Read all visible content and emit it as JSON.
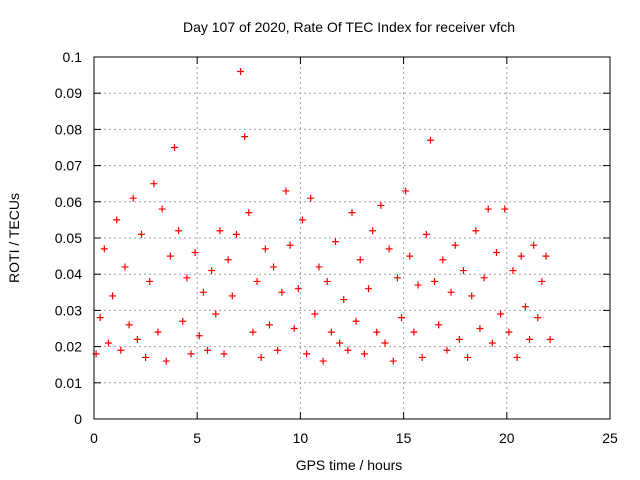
{
  "chart_data": {
    "type": "scatter",
    "title": "Day 107 of 2020, Rate Of TEC Index for receiver vfch",
    "xlabel": "GPS time / hours",
    "ylabel": "ROTI / TECUs",
    "xlim": [
      0,
      25
    ],
    "ylim": [
      0,
      0.1
    ],
    "xticks": [
      "0",
      "5",
      "10",
      "15",
      "20",
      "25"
    ],
    "yticks": [
      "0",
      "0.01",
      "0.02",
      "0.03",
      "0.04",
      "0.05",
      "0.06",
      "0.07",
      "0.08",
      "0.09",
      "0.1"
    ],
    "grid": true,
    "marker": "+",
    "color": "#ff0000",
    "series": [
      {
        "x": [
          0.1,
          0.3,
          0.5,
          0.7,
          0.9,
          1.1,
          1.3,
          1.5,
          1.7,
          1.9,
          2.1,
          2.3,
          2.5,
          2.7,
          2.9,
          3.1,
          3.3,
          3.5,
          3.7,
          3.9,
          4.1,
          4.3,
          4.5,
          4.7,
          4.9,
          5.1,
          5.3,
          5.5,
          5.7,
          5.9,
          6.1,
          6.3,
          6.5,
          6.7,
          6.9,
          7.1,
          7.3,
          7.5,
          7.7,
          7.9,
          8.1,
          8.3,
          8.5,
          8.7,
          8.9,
          9.1,
          9.3,
          9.5,
          9.7,
          9.9,
          10.1,
          10.3,
          10.5,
          10.7,
          10.9,
          11.1,
          11.3,
          11.5,
          11.7,
          11.9,
          12.1,
          12.3,
          12.5,
          12.7,
          12.9,
          13.1,
          13.3,
          13.5,
          13.7,
          13.9,
          14.1,
          14.3,
          14.5,
          14.7,
          14.9,
          15.1,
          15.3,
          15.5,
          15.7,
          15.9,
          16.1,
          16.3,
          16.5,
          16.7,
          16.9,
          17.1,
          17.3,
          17.5,
          17.7,
          17.9,
          18.1,
          18.3,
          18.5,
          18.7,
          18.9,
          19.1,
          19.3,
          19.5,
          19.7,
          19.9,
          20.1,
          20.3,
          20.5,
          20.7,
          20.9,
          21.1,
          21.3,
          21.5,
          21.7,
          21.9,
          22.1
        ],
        "y": [
          0.018,
          0.028,
          0.047,
          0.021,
          0.034,
          0.055,
          0.019,
          0.042,
          0.026,
          0.061,
          0.022,
          0.051,
          0.017,
          0.038,
          0.065,
          0.024,
          0.058,
          0.016,
          0.045,
          0.075,
          0.052,
          0.027,
          0.039,
          0.018,
          0.046,
          0.023,
          0.035,
          0.019,
          0.041,
          0.029,
          0.052,
          0.018,
          0.044,
          0.034,
          0.051,
          0.096,
          0.078,
          0.057,
          0.024,
          0.038,
          0.017,
          0.047,
          0.026,
          0.042,
          0.019,
          0.035,
          0.063,
          0.048,
          0.025,
          0.036,
          0.055,
          0.018,
          0.061,
          0.029,
          0.042,
          0.016,
          0.038,
          0.024,
          0.049,
          0.021,
          0.033,
          0.019,
          0.057,
          0.027,
          0.044,
          0.018,
          0.036,
          0.052,
          0.024,
          0.059,
          0.021,
          0.047,
          0.016,
          0.039,
          0.028,
          0.063,
          0.045,
          0.024,
          0.037,
          0.017,
          0.051,
          0.077,
          0.038,
          0.026,
          0.044,
          0.019,
          0.035,
          0.048,
          0.022,
          0.041,
          0.017,
          0.034,
          0.052,
          0.025,
          0.039,
          0.058,
          0.021,
          0.046,
          0.029,
          0.058,
          0.024,
          0.041,
          0.017,
          0.045,
          0.031,
          0.022,
          0.048,
          0.028,
          0.038,
          0.045,
          0.022
        ]
      }
    ]
  }
}
